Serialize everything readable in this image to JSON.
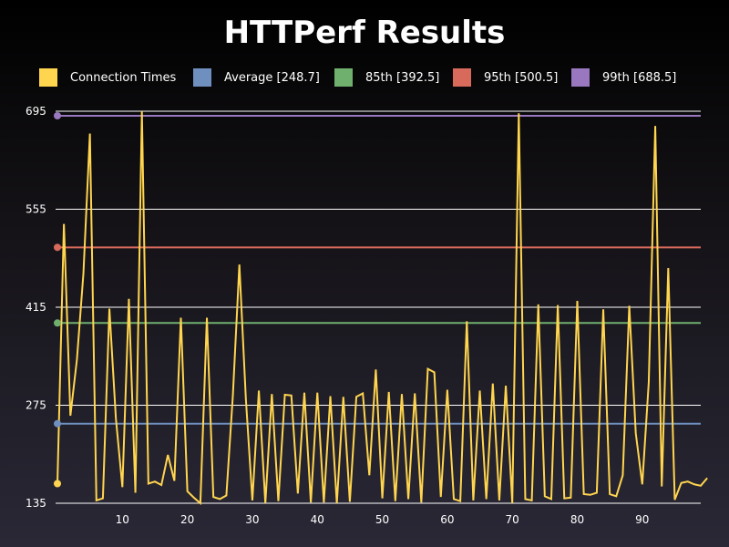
{
  "chart_data": {
    "type": "line",
    "title": "HTTPerf Results",
    "xlabel": "",
    "ylabel": "",
    "xlim": [
      0,
      99
    ],
    "ylim": [
      135,
      695
    ],
    "y_ticks": [
      135,
      275,
      415,
      555,
      695
    ],
    "x_ticks": [
      10,
      20,
      30,
      40,
      50,
      60,
      70,
      80,
      90
    ],
    "grid": "horizontal",
    "legend_position": "top",
    "series": [
      {
        "name": "Connection Times",
        "color": "#ffd54f",
        "values": [
          163,
          534,
          260,
          340,
          463,
          663,
          139,
          142,
          413,
          256,
          158,
          427,
          150,
          704,
          163,
          166,
          161,
          204,
          167,
          400,
          152,
          143,
          135,
          400,
          144,
          141,
          146,
          289,
          476,
          284,
          139,
          296,
          135,
          291,
          138,
          290,
          289,
          149,
          293,
          136,
          293,
          136,
          288,
          135,
          287,
          137,
          287,
          292,
          175,
          326,
          142,
          294,
          138,
          291,
          141,
          292,
          136,
          327,
          322,
          144,
          297,
          141,
          138,
          395,
          139,
          296,
          141,
          306,
          139,
          303,
          135,
          692,
          141,
          139,
          419,
          145,
          141,
          418,
          142,
          143,
          424,
          148,
          147,
          150,
          412,
          148,
          145,
          175,
          417,
          235,
          162,
          308,
          674,
          159,
          471,
          140,
          164,
          166,
          162,
          160,
          171
        ]
      },
      {
        "name": "Average [248.7]",
        "color": "#6f8fbf",
        "value": 248.7
      },
      {
        "name": "85th [392.5]",
        "color": "#6fb06f",
        "value": 392.5
      },
      {
        "name": "95th [500.5]",
        "color": "#d86a5c",
        "value": 500.5
      },
      {
        "name": "99th [688.5]",
        "color": "#9a78c0",
        "value": 688.5
      }
    ]
  }
}
